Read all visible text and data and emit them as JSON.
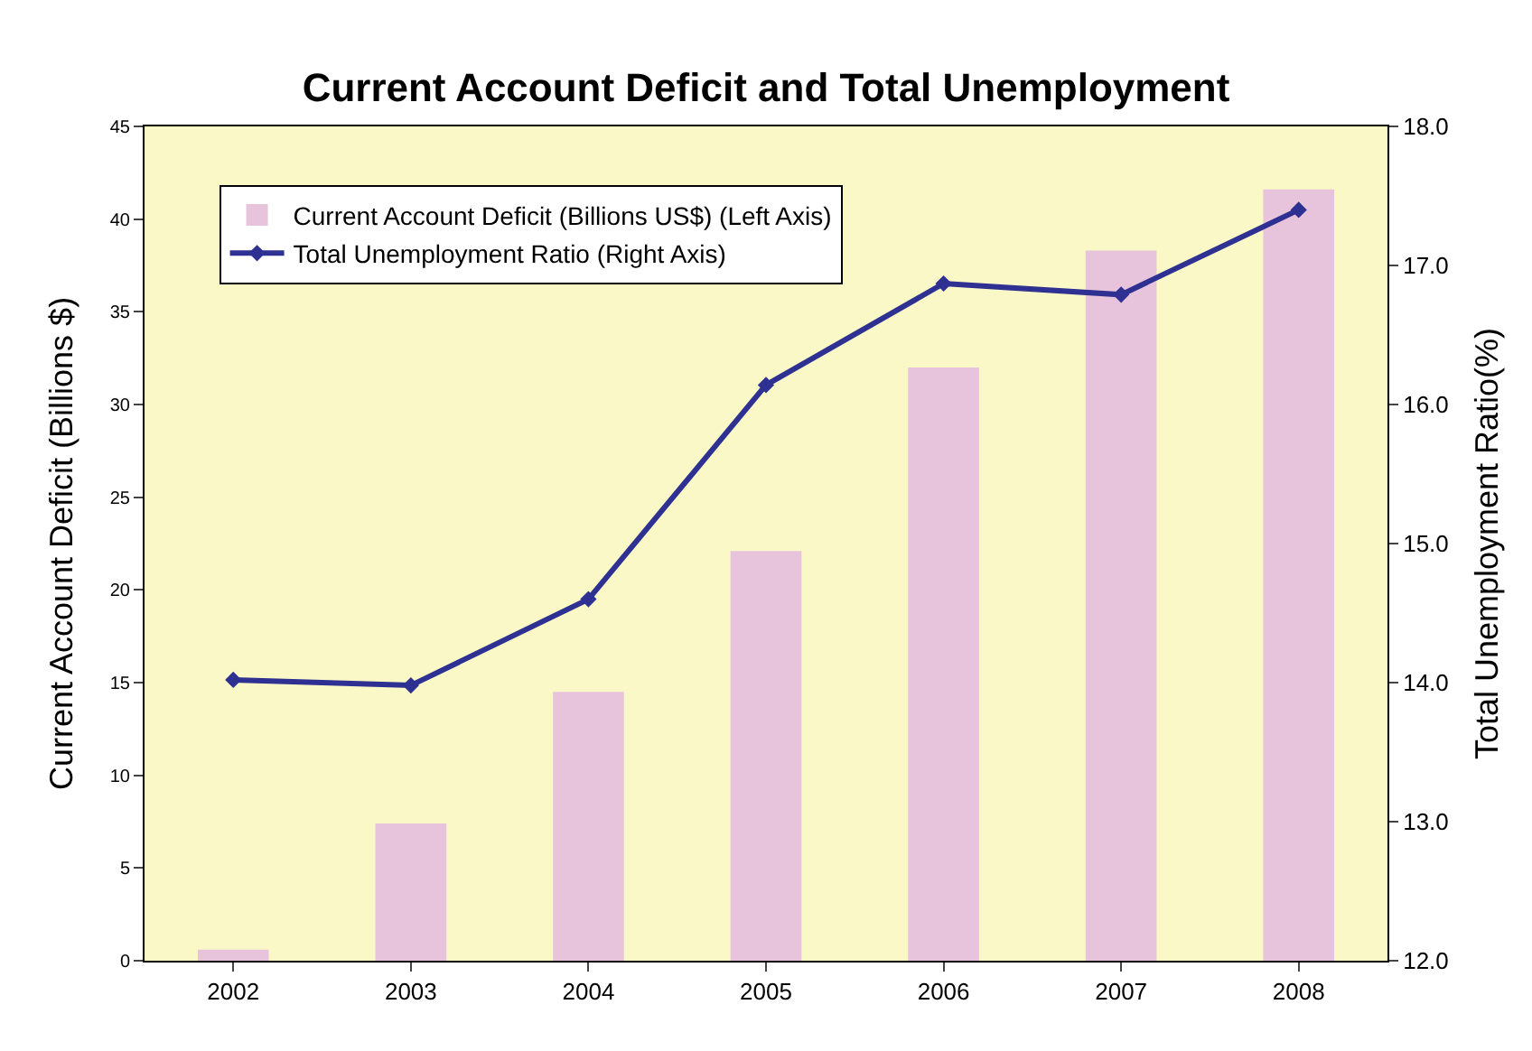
{
  "chart_data": {
    "type": "bar",
    "title": "Current Account Deficit and Total Unemployment",
    "categories": [
      "2002",
      "2003",
      "2004",
      "2005",
      "2006",
      "2007",
      "2008"
    ],
    "series": [
      {
        "name": "Current Account Deficit (Billions US$) (Left Axis)",
        "color": "#e8c4dc",
        "values": [
          0.6,
          7.4,
          14.5,
          22.1,
          32.0,
          38.3,
          41.6
        ]
      },
      {
        "name": "Total Unemployment Ratio (Right Axis)",
        "type": "line",
        "axis": "y2",
        "color": "#2e3192",
        "marker": "diamond",
        "values": [
          14.02,
          13.98,
          14.6,
          16.14,
          16.87,
          16.79,
          17.4
        ]
      }
    ],
    "ylabel": "Current Account Deficit (Billions $)",
    "y2label": "Total Unemployment Ratio(%)",
    "ylim": [
      0,
      45
    ],
    "yticks": [
      0,
      5,
      10,
      15,
      20,
      25,
      30,
      35,
      40,
      45
    ],
    "y2lim": [
      12,
      18
    ],
    "y2ticks": [
      {
        "value": 12,
        "label": "12.0"
      },
      {
        "value": 13,
        "label": "13.0"
      },
      {
        "value": 14,
        "label": "14.0"
      },
      {
        "value": 15,
        "label": "15.0"
      },
      {
        "value": 16,
        "label": "16.0"
      },
      {
        "value": 17,
        "label": "17.0"
      },
      {
        "value": 18,
        "label": "18.0"
      }
    ],
    "grid": false,
    "legend": "top left"
  }
}
